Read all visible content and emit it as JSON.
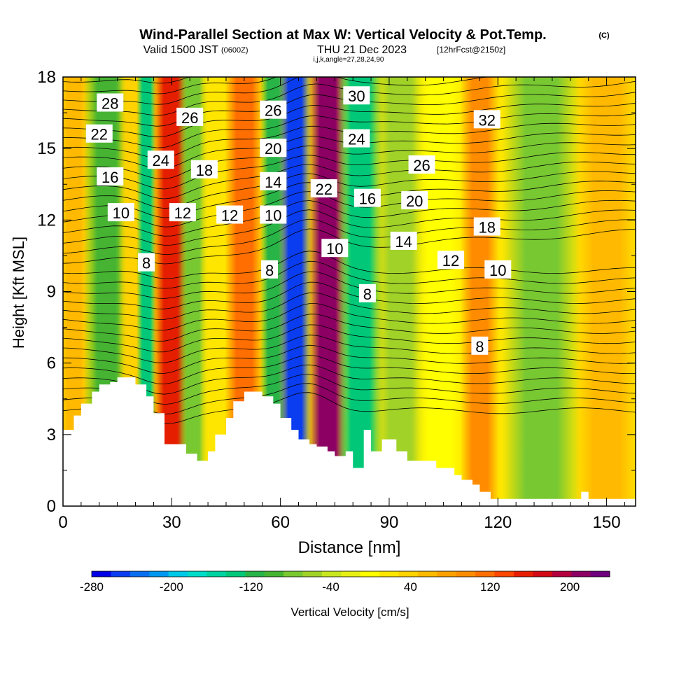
{
  "header": {
    "title": "Wind-Parallel Section at Max W: Vertical Velocity & Pot.Temp.",
    "copyright": "(C)",
    "valid_prefix": "Valid 1500 JST",
    "valid_utc": "(0600Z)",
    "valid_date": "THU 21 Dec 2023",
    "forecast": "[12hrFcst@2150z]",
    "indices": "i,j,k,angle=27,28,24,90"
  },
  "chart_data": {
    "type": "heatmap",
    "title": "Wind-Parallel Section at Max W: Vertical Velocity & Pot.Temp.",
    "xlabel": "Distance [nm]",
    "ylabel": "Height [Kft MSL]",
    "xlim": [
      0,
      158
    ],
    "ylim": [
      0,
      18
    ],
    "x_ticks": [
      0,
      30,
      60,
      90,
      120,
      150
    ],
    "y_ticks": [
      0,
      3,
      6,
      9,
      12,
      15,
      18
    ],
    "x_tick_labels": [
      "0",
      "30",
      "60",
      "90",
      "120",
      "150"
    ],
    "y_tick_labels": [
      "0",
      "3",
      "6",
      "9",
      "12",
      "15",
      "18"
    ],
    "colorbar": {
      "label": "Vertical Velocity [cm/s]",
      "min": -280,
      "max": 240,
      "step": 20,
      "tick_values": [
        -280,
        -200,
        -120,
        -40,
        40,
        120,
        200
      ],
      "tick_labels": [
        "-280",
        "-200",
        "-120",
        "-40",
        "40",
        "120",
        "200"
      ],
      "colors": [
        "#0000e6",
        "#0a3cf0",
        "#0a6ef0",
        "#0096f0",
        "#00c8e6",
        "#00dcc8",
        "#00d2a0",
        "#00c878",
        "#28b446",
        "#46b432",
        "#78c832",
        "#a0d228",
        "#c8e61e",
        "#e6f014",
        "#ffff00",
        "#ffe600",
        "#ffd200",
        "#ffb900",
        "#ffa000",
        "#ff8c00",
        "#ff6e00",
        "#ff4600",
        "#e61e00",
        "#d20a14",
        "#b4003c",
        "#8c0064",
        "#6e007d"
      ]
    },
    "terrain_profile": {
      "x": [
        0,
        3,
        5,
        8,
        10,
        13,
        15,
        19,
        20,
        23,
        25,
        28,
        30,
        34,
        37,
        40,
        42,
        45,
        47,
        50,
        53,
        55,
        58,
        60,
        63,
        65,
        68,
        70,
        73,
        75,
        78,
        80,
        83,
        85,
        88,
        90,
        92,
        95,
        100,
        103,
        105,
        108,
        110,
        113,
        115,
        118,
        120,
        123,
        125,
        130,
        137,
        143,
        145,
        150,
        158
      ],
      "height": [
        3.2,
        3.8,
        4.3,
        4.8,
        5.1,
        5.2,
        5.4,
        5.4,
        5.1,
        4.6,
        3.9,
        2.6,
        2.6,
        2.2,
        1.9,
        2.3,
        3.0,
        3.7,
        4.4,
        4.8,
        4.8,
        4.6,
        4.3,
        3.7,
        3.2,
        2.8,
        2.6,
        2.5,
        2.3,
        2.1,
        2.3,
        1.6,
        3.2,
        2.3,
        2.8,
        2.8,
        2.3,
        1.9,
        1.9,
        1.6,
        1.6,
        1.3,
        1.1,
        0.9,
        0.6,
        0.3,
        0.3,
        0.3,
        0.3,
        0.3,
        0.3,
        0.6,
        0.3,
        0.3,
        0.3
      ]
    },
    "velocity_bands": [
      {
        "x": 3,
        "w": 5,
        "value": 60
      },
      {
        "x": 12,
        "w": 7,
        "value": -100
      },
      {
        "x": 19,
        "w": 4,
        "value": 40
      },
      {
        "x": 23,
        "w": 3,
        "value": -140
      },
      {
        "x": 30,
        "w": 6,
        "value": 160
      },
      {
        "x": 36,
        "w": 5,
        "value": -80
      },
      {
        "x": 42,
        "w": 5,
        "value": 20
      },
      {
        "x": 50,
        "w": 6,
        "value": 120
      },
      {
        "x": 58,
        "w": 4,
        "value": -120
      },
      {
        "x": 64,
        "w": 5,
        "value": -260
      },
      {
        "x": 73,
        "w": 6,
        "value": 220
      },
      {
        "x": 82,
        "w": 7,
        "value": -140
      },
      {
        "x": 93,
        "w": 8,
        "value": -60
      },
      {
        "x": 104,
        "w": 8,
        "value": 0
      },
      {
        "x": 115,
        "w": 6,
        "value": 100
      },
      {
        "x": 132,
        "w": 12,
        "value": -80
      },
      {
        "x": 150,
        "w": 10,
        "value": 60
      }
    ],
    "theta_contour_labels": [
      {
        "text": "28",
        "x": 13,
        "y": 16.9
      },
      {
        "text": "22",
        "x": 10,
        "y": 15.6
      },
      {
        "text": "16",
        "x": 13,
        "y": 13.8
      },
      {
        "text": "10",
        "x": 16,
        "y": 12.3
      },
      {
        "text": "8",
        "x": 23,
        "y": 10.2
      },
      {
        "text": "24",
        "x": 27,
        "y": 14.5
      },
      {
        "text": "26",
        "x": 35,
        "y": 16.3
      },
      {
        "text": "12",
        "x": 33,
        "y": 12.3
      },
      {
        "text": "18",
        "x": 39,
        "y": 14.1
      },
      {
        "text": "12",
        "x": 46,
        "y": 12.2
      },
      {
        "text": "26",
        "x": 58,
        "y": 16.6
      },
      {
        "text": "20",
        "x": 58,
        "y": 15.0
      },
      {
        "text": "14",
        "x": 58,
        "y": 13.6
      },
      {
        "text": "10",
        "x": 58,
        "y": 12.2
      },
      {
        "text": "8",
        "x": 57,
        "y": 9.9
      },
      {
        "text": "30",
        "x": 81,
        "y": 17.2
      },
      {
        "text": "24",
        "x": 81,
        "y": 15.4
      },
      {
        "text": "22",
        "x": 72,
        "y": 13.3
      },
      {
        "text": "16",
        "x": 84,
        "y": 12.9
      },
      {
        "text": "10",
        "x": 75,
        "y": 10.8
      },
      {
        "text": "8",
        "x": 84,
        "y": 8.9
      },
      {
        "text": "26",
        "x": 99,
        "y": 14.3
      },
      {
        "text": "20",
        "x": 97,
        "y": 12.8
      },
      {
        "text": "14",
        "x": 94,
        "y": 11.1
      },
      {
        "text": "12",
        "x": 107,
        "y": 10.3
      },
      {
        "text": "32",
        "x": 117,
        "y": 16.2
      },
      {
        "text": "18",
        "x": 117,
        "y": 11.7
      },
      {
        "text": "10",
        "x": 120,
        "y": 9.9
      },
      {
        "text": "8",
        "x": 115,
        "y": 6.7
      }
    ]
  }
}
